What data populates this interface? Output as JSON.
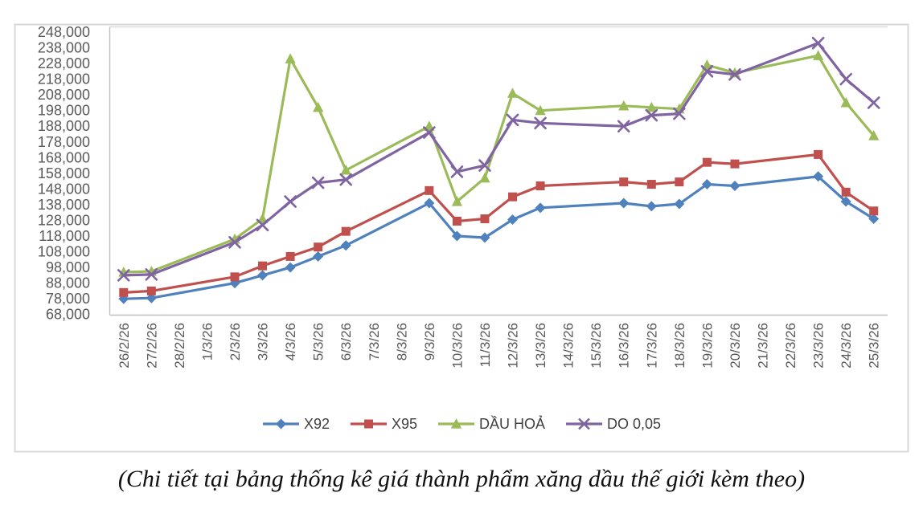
{
  "chart_data": {
    "type": "line",
    "title": "",
    "x": [
      "26/2/26",
      "27/2/26",
      "28/2/26",
      "1/3/26",
      "2/3/26",
      "3/3/26",
      "4/3/26",
      "5/3/26",
      "6/3/26",
      "7/3/26",
      "8/3/26",
      "9/3/26",
      "10/3/26",
      "11/3/26",
      "12/3/26",
      "13/3/26",
      "14/3/26",
      "15/3/26",
      "16/3/26",
      "17/3/26",
      "18/3/26",
      "19/3/26",
      "20/3/26",
      "21/3/26",
      "22/3/26",
      "23/3/26",
      "24/3/26",
      "25/3/26"
    ],
    "series": [
      {
        "id": "x92",
        "name": "X92",
        "color": "#4F81BD",
        "marker": "diamond",
        "values": [
          78000,
          78500,
          null,
          null,
          88000,
          93000,
          98000,
          105000,
          112000,
          null,
          null,
          139000,
          118000,
          117000,
          128500,
          136000,
          null,
          null,
          139000,
          137000,
          138500,
          151000,
          150000,
          null,
          null,
          156000,
          140000,
          129000
        ]
      },
      {
        "id": "x95",
        "name": "X95",
        "color": "#C0504D",
        "marker": "square",
        "values": [
          82000,
          83000,
          null,
          null,
          92000,
          99000,
          105000,
          111000,
          121000,
          null,
          null,
          147000,
          127500,
          129000,
          143000,
          150000,
          null,
          null,
          152500,
          151000,
          152500,
          165000,
          164000,
          null,
          null,
          170000,
          146000,
          134000
        ]
      },
      {
        "id": "dau-hoa",
        "name": "DẦU HOẢ",
        "color": "#9BBB59",
        "marker": "triangle",
        "values": [
          95000,
          95500,
          null,
          null,
          116000,
          129000,
          231000,
          200000,
          160000,
          null,
          null,
          188000,
          140000,
          155000,
          209000,
          198000,
          null,
          null,
          201000,
          200000,
          199000,
          227000,
          222000,
          null,
          null,
          233000,
          203000,
          182000
        ]
      },
      {
        "id": "do-0-05",
        "name": "DO 0,05",
        "color": "#8064A2",
        "marker": "xmark",
        "values": [
          93000,
          93500,
          null,
          null,
          114000,
          125000,
          140000,
          152000,
          154000,
          null,
          null,
          184000,
          159000,
          163000,
          192000,
          190000,
          null,
          null,
          188000,
          195000,
          196000,
          223000,
          221000,
          null,
          null,
          241000,
          218000,
          203000
        ]
      }
    ],
    "ylim": [
      68000,
      248000
    ],
    "ytick_step": 10000,
    "y_tick_labels": [
      "248,000",
      "238,000",
      "228,000",
      "218,000",
      "208,000",
      "198,000",
      "188,000",
      "178,000",
      "168,000",
      "158,000",
      "148,000",
      "138,000",
      "128,000",
      "118,000",
      "108,000",
      "98,000",
      "88,000",
      "78,000",
      "68,000"
    ],
    "grid": false,
    "legend_position": "bottom",
    "x_tick_rotation": -90,
    "style": {
      "axis_label_color": "#595959",
      "axis_line_color": "#bfbfbf",
      "frame_border_color": "#d9d9d9",
      "plot_top_border_color": "#d9d9d9",
      "background": "#ffffff"
    }
  },
  "caption": "(Chi tiết tại bảng thống kê giá thành phẩm xăng dầu thế giới kèm theo)"
}
